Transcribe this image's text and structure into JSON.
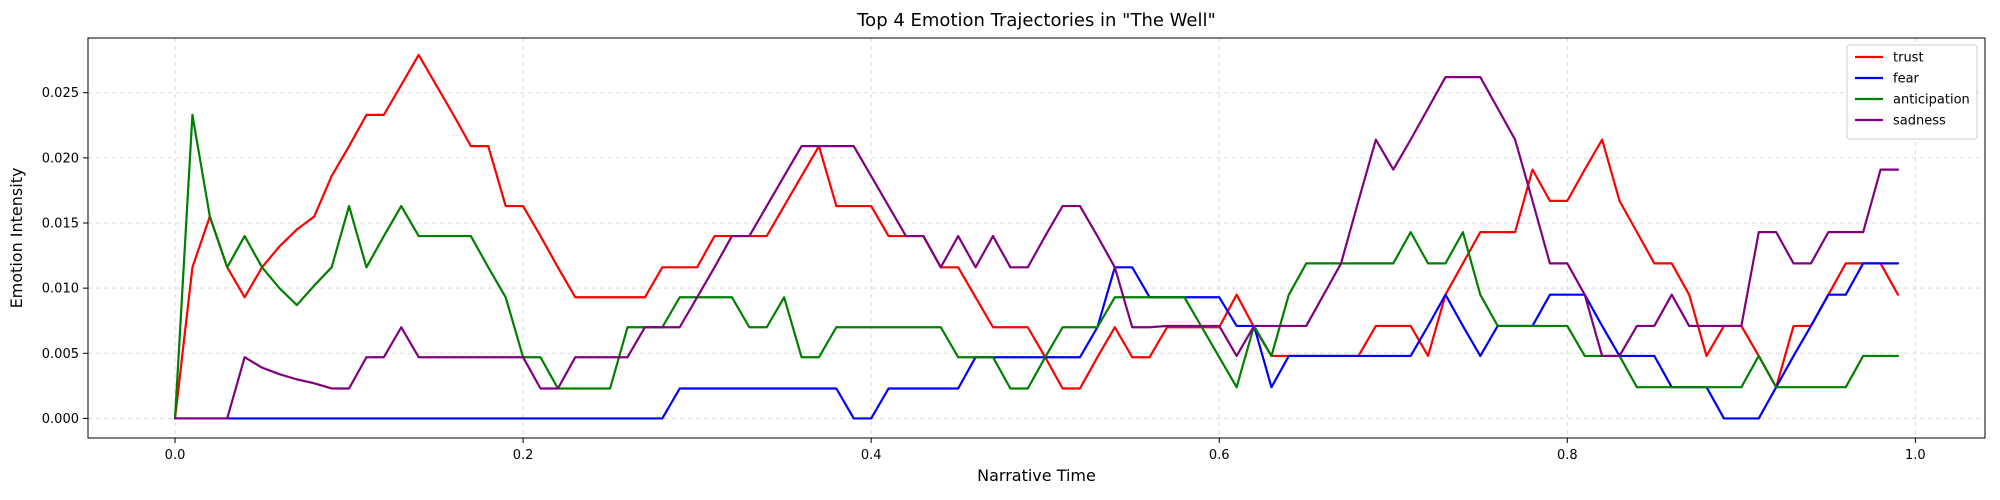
{
  "chart_data": {
    "type": "line",
    "title": "Top 4 Emotion Trajectories in \"The Well\"",
    "xlabel": "Narrative Time",
    "ylabel": "Emotion Intensity",
    "xlim": [
      -0.05,
      1.04
    ],
    "ylim": [
      -0.0015,
      0.0292
    ],
    "xticks": [
      0.0,
      0.2,
      0.4,
      0.6,
      0.8,
      1.0
    ],
    "xtick_labels": [
      "0.0",
      "0.2",
      "0.4",
      "0.6",
      "0.8",
      "1.0"
    ],
    "yticks": [
      0.0,
      0.005,
      0.01,
      0.015,
      0.02,
      0.025
    ],
    "ytick_labels": [
      "0.000",
      "0.005",
      "0.010",
      "0.015",
      "0.020",
      "0.025"
    ],
    "grid": true,
    "legend_position": "top-right",
    "x": [
      0.0,
      0.01,
      0.02,
      0.03,
      0.04,
      0.05,
      0.06,
      0.07,
      0.08,
      0.09,
      0.1,
      0.11,
      0.12,
      0.13,
      0.14,
      0.15,
      0.16,
      0.17,
      0.18,
      0.19,
      0.2,
      0.21,
      0.22,
      0.23,
      0.24,
      0.25,
      0.26,
      0.27,
      0.28,
      0.29,
      0.3,
      0.31,
      0.32,
      0.33,
      0.34,
      0.35,
      0.36,
      0.37,
      0.38,
      0.39,
      0.4,
      0.41,
      0.42,
      0.43,
      0.44,
      0.45,
      0.46,
      0.47,
      0.48,
      0.49,
      0.5,
      0.51,
      0.52,
      0.53,
      0.54,
      0.55,
      0.56,
      0.57,
      0.58,
      0.59,
      0.6,
      0.61,
      0.62,
      0.63,
      0.64,
      0.65,
      0.66,
      0.67,
      0.68,
      0.69,
      0.7,
      0.71,
      0.72,
      0.73,
      0.74,
      0.75,
      0.76,
      0.77,
      0.78,
      0.79,
      0.8,
      0.81,
      0.82,
      0.83,
      0.84,
      0.85,
      0.86,
      0.87,
      0.88,
      0.89,
      0.9,
      0.91,
      0.92,
      0.93,
      0.94,
      0.95,
      0.96,
      0.97,
      0.98,
      0.99
    ],
    "series": [
      {
        "name": "trust",
        "color": "#ff0000",
        "values": [
          0.0,
          0.0116,
          0.0155,
          0.0116,
          0.0093,
          0.0116,
          0.0132,
          0.0145,
          0.0155,
          0.0186,
          0.0209,
          0.0233,
          0.0233,
          0.0256,
          0.0279,
          0.0256,
          0.0233,
          0.0209,
          0.0209,
          0.0163,
          0.0163,
          0.014,
          0.0116,
          0.0093,
          0.0093,
          0.0093,
          0.0093,
          0.0093,
          0.0116,
          0.0116,
          0.0116,
          0.014,
          0.014,
          0.014,
          0.014,
          0.0163,
          0.0186,
          0.0209,
          0.0163,
          0.0163,
          0.0163,
          0.014,
          0.014,
          0.014,
          0.0116,
          0.0116,
          0.0093,
          0.007,
          0.007,
          0.007,
          0.0047,
          0.0023,
          0.0023,
          0.0047,
          0.007,
          0.0047,
          0.0047,
          0.007,
          0.007,
          0.007,
          0.007,
          0.0095,
          0.007,
          0.0048,
          0.0048,
          0.0048,
          0.0048,
          0.0048,
          0.0048,
          0.0071,
          0.0071,
          0.0071,
          0.0048,
          0.0095,
          0.0119,
          0.0143,
          0.0143,
          0.0143,
          0.0191,
          0.0167,
          0.0167,
          0.0191,
          0.0214,
          0.0167,
          0.0143,
          0.0119,
          0.0119,
          0.0095,
          0.0048,
          0.0071,
          0.0071,
          0.0048,
          0.0024,
          0.0071,
          0.0071,
          0.0095,
          0.0119,
          0.0119,
          0.0119,
          0.0095
        ]
      },
      {
        "name": "fear",
        "color": "#0000ff",
        "values": [
          0.0,
          0.0,
          0.0,
          0.0,
          0.0,
          0.0,
          0.0,
          0.0,
          0.0,
          0.0,
          0.0,
          0.0,
          0.0,
          0.0,
          0.0,
          0.0,
          0.0,
          0.0,
          0.0,
          0.0,
          0.0,
          0.0,
          0.0,
          0.0,
          0.0,
          0.0,
          0.0,
          0.0,
          0.0,
          0.0023,
          0.0023,
          0.0023,
          0.0023,
          0.0023,
          0.0023,
          0.0023,
          0.0023,
          0.0023,
          0.0023,
          0.0,
          0.0,
          0.0023,
          0.0023,
          0.0023,
          0.0023,
          0.0023,
          0.0047,
          0.0047,
          0.0047,
          0.0047,
          0.0047,
          0.0047,
          0.0047,
          0.007,
          0.0116,
          0.0116,
          0.0093,
          0.0093,
          0.0093,
          0.0093,
          0.0093,
          0.0071,
          0.0071,
          0.0024,
          0.0048,
          0.0048,
          0.0048,
          0.0048,
          0.0048,
          0.0048,
          0.0048,
          0.0048,
          0.0071,
          0.0095,
          0.0071,
          0.0048,
          0.0071,
          0.0071,
          0.0071,
          0.0095,
          0.0095,
          0.0095,
          0.0071,
          0.0048,
          0.0048,
          0.0048,
          0.0024,
          0.0024,
          0.0024,
          0.0,
          0.0,
          0.0,
          0.0024,
          0.0048,
          0.0071,
          0.0095,
          0.0095,
          0.0119,
          0.0119,
          0.0119
        ]
      },
      {
        "name": "anticipation",
        "color": "#008000",
        "values": [
          0.0,
          0.0233,
          0.0155,
          0.0116,
          0.014,
          0.0116,
          0.01,
          0.0087,
          0.0102,
          0.0116,
          0.0163,
          0.0116,
          0.014,
          0.0163,
          0.014,
          0.014,
          0.014,
          0.014,
          0.0116,
          0.0093,
          0.0047,
          0.0047,
          0.0023,
          0.0023,
          0.0023,
          0.0023,
          0.007,
          0.007,
          0.007,
          0.0093,
          0.0093,
          0.0093,
          0.0093,
          0.007,
          0.007,
          0.0093,
          0.0047,
          0.0047,
          0.007,
          0.007,
          0.007,
          0.007,
          0.007,
          0.007,
          0.007,
          0.0047,
          0.0047,
          0.0047,
          0.0023,
          0.0023,
          0.0047,
          0.007,
          0.007,
          0.007,
          0.0093,
          0.0093,
          0.0093,
          0.0093,
          0.0093,
          0.007,
          0.0047,
          0.0024,
          0.0071,
          0.0048,
          0.0095,
          0.0119,
          0.0119,
          0.0119,
          0.0119,
          0.0119,
          0.0119,
          0.0143,
          0.0119,
          0.0119,
          0.0143,
          0.0095,
          0.0071,
          0.0071,
          0.0071,
          0.0071,
          0.0071,
          0.0048,
          0.0048,
          0.0048,
          0.0024,
          0.0024,
          0.0024,
          0.0024,
          0.0024,
          0.0024,
          0.0024,
          0.0048,
          0.0024,
          0.0024,
          0.0024,
          0.0024,
          0.0024,
          0.0048,
          0.0048,
          0.0048
        ]
      },
      {
        "name": "sadness",
        "color": "#800080",
        "values": [
          0.0,
          0.0,
          0.0,
          0.0,
          0.0047,
          0.0039,
          0.0034,
          0.003,
          0.0027,
          0.0023,
          0.0023,
          0.0047,
          0.0047,
          0.007,
          0.0047,
          0.0047,
          0.0047,
          0.0047,
          0.0047,
          0.0047,
          0.0047,
          0.0023,
          0.0023,
          0.0047,
          0.0047,
          0.0047,
          0.0047,
          0.007,
          0.007,
          0.007,
          0.0093,
          0.0116,
          0.014,
          0.014,
          0.0163,
          0.0186,
          0.0209,
          0.0209,
          0.0209,
          0.0209,
          0.0186,
          0.0163,
          0.014,
          0.014,
          0.0116,
          0.014,
          0.0116,
          0.014,
          0.0116,
          0.0116,
          0.014,
          0.0163,
          0.0163,
          0.014,
          0.0116,
          0.007,
          0.007,
          0.0071,
          0.0071,
          0.0071,
          0.0071,
          0.0048,
          0.0071,
          0.0071,
          0.0071,
          0.0071,
          0.0095,
          0.0119,
          0.0167,
          0.0214,
          0.0191,
          0.0214,
          0.0238,
          0.0262,
          0.0262,
          0.0262,
          0.0238,
          0.0214,
          0.0167,
          0.0119,
          0.0119,
          0.0095,
          0.0048,
          0.0048,
          0.0071,
          0.0071,
          0.0095,
          0.0071,
          0.0071,
          0.0071,
          0.0071,
          0.0143,
          0.0143,
          0.0119,
          0.0119,
          0.0143,
          0.0143,
          0.0143,
          0.0191,
          0.0191
        ]
      }
    ]
  }
}
